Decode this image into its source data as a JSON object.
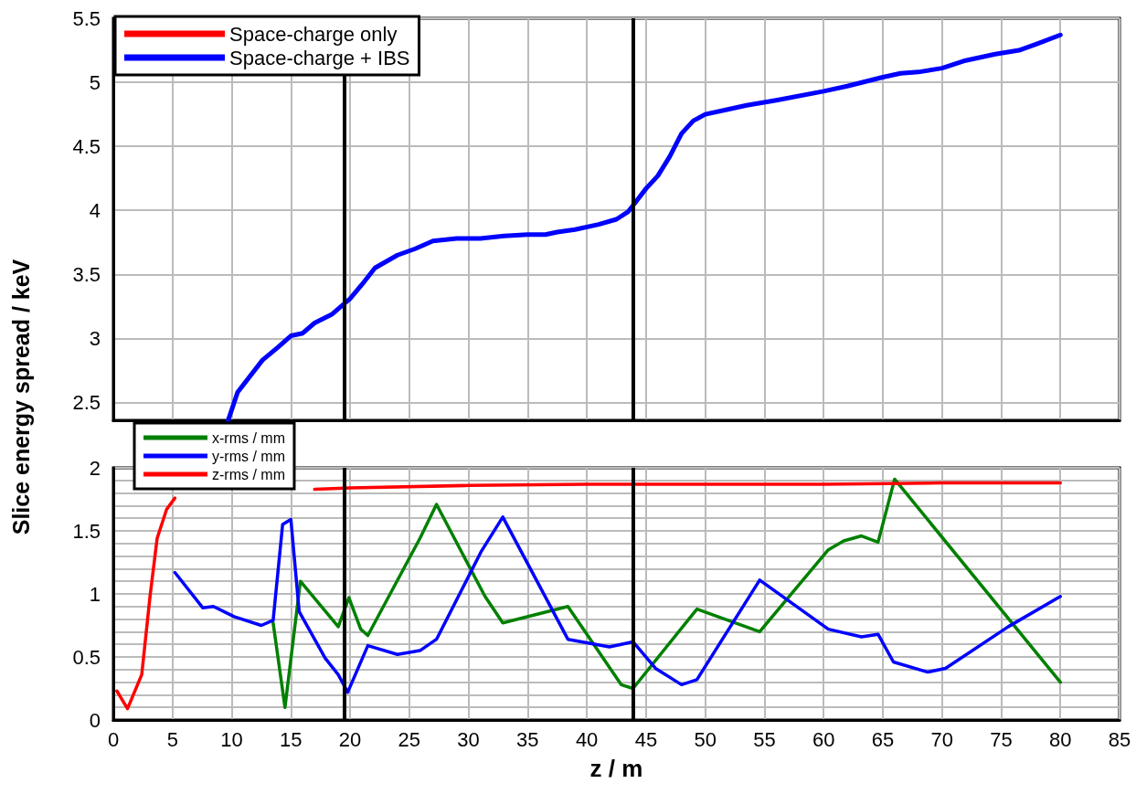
{
  "chart_data": [
    {
      "type": "line",
      "ylabel": "Slice energy spread / keV",
      "xlim": [
        0,
        85
      ],
      "xticks": [
        0,
        5,
        10,
        15,
        20,
        25,
        30,
        35,
        40,
        45,
        50,
        55,
        60,
        65,
        70,
        75,
        80,
        85
      ],
      "ylim": [
        2.36,
        5.5
      ],
      "yticks": [
        2.5,
        3,
        3.5,
        4,
        4.5,
        5,
        5.5
      ],
      "tick_labels": "y",
      "grid": true,
      "legend": "top left",
      "marker": "none",
      "line_style": "solid",
      "ref_lines": [
        {
          "axis": "x",
          "value": 19.5,
          "color": "#000000"
        },
        {
          "axis": "x",
          "value": 43.9,
          "color": "#000000"
        }
      ],
      "series": [
        {
          "name": "Space-charge only",
          "color": "#ff0000"
        },
        {
          "name": "Space-charge + IBS",
          "color": "#0000ff",
          "x": [
            9.7,
            10.5,
            12.6,
            13.9,
            15,
            16,
            17,
            18.5,
            20,
            21,
            22.1,
            24,
            25.5,
            27,
            29,
            31,
            33,
            35,
            36.5,
            37.5,
            39,
            41,
            42.5,
            43.5,
            44,
            45,
            46,
            47,
            48,
            49,
            50,
            52,
            53.5,
            56,
            60,
            62,
            65,
            66.5,
            68,
            70,
            72,
            74.5,
            76.5,
            78,
            80
          ],
          "values": [
            2.36,
            2.58,
            2.83,
            2.93,
            3.02,
            3.04,
            3.12,
            3.19,
            3.31,
            3.42,
            3.55,
            3.65,
            3.7,
            3.76,
            3.78,
            3.78,
            3.8,
            3.81,
            3.81,
            3.83,
            3.85,
            3.89,
            3.93,
            3.99,
            4.05,
            4.17,
            4.27,
            4.42,
            4.6,
            4.7,
            4.75,
            4.79,
            4.82,
            4.86,
            4.93,
            4.97,
            5.04,
            5.07,
            5.08,
            5.11,
            5.17,
            5.22,
            5.25,
            5.3,
            5.37
          ]
        }
      ]
    },
    {
      "type": "line",
      "xlabel": "z / m",
      "xlim": [
        0,
        85
      ],
      "xticks": [
        0,
        5,
        10,
        15,
        20,
        25,
        30,
        35,
        40,
        45,
        50,
        55,
        60,
        65,
        70,
        75,
        80,
        85
      ],
      "ylim": [
        0,
        2
      ],
      "yticks": [
        0,
        {
          "value": 0.1,
          "label": null
        },
        {
          "value": 0.2,
          "label": null
        },
        {
          "value": 0.3,
          "label": null
        },
        {
          "value": 0.4,
          "label": null
        },
        0.5,
        {
          "value": 0.6,
          "label": null
        },
        {
          "value": 0.7,
          "label": null
        },
        {
          "value": 0.8,
          "label": null
        },
        {
          "value": 0.9,
          "label": null
        },
        1,
        {
          "value": 1.1,
          "label": null
        },
        {
          "value": 1.2,
          "label": null
        },
        {
          "value": 1.3,
          "label": null
        },
        {
          "value": 1.4,
          "label": null
        },
        1.5,
        {
          "value": 1.6,
          "label": null
        },
        {
          "value": 1.7,
          "label": null
        },
        {
          "value": 1.8,
          "label": null
        },
        {
          "value": 1.9,
          "label": null
        },
        2
      ],
      "grid": true,
      "legend": "top left",
      "marker": "none",
      "line_style": "solid",
      "ref_lines": [
        {
          "axis": "x",
          "value": 19.5,
          "color": "#000000"
        },
        {
          "axis": "x",
          "value": 43.9,
          "color": "#000000"
        }
      ],
      "series": [
        {
          "name": "x-rms / mm",
          "color": "#008000",
          "x": [
            13.5,
            14.5,
            15.8,
            19,
            19.9,
            20.9,
            21.5,
            25.9,
            27.3,
            31.4,
            32.9,
            38.4,
            42.9,
            43.9,
            49.3,
            54.6,
            60.4,
            61.7,
            63.2,
            64.6,
            66,
            80
          ],
          "values": [
            0.77,
            0.1,
            1.1,
            0.74,
            0.97,
            0.72,
            0.67,
            1.44,
            1.71,
            0.98,
            0.77,
            0.9,
            0.28,
            0.25,
            0.88,
            0.7,
            1.35,
            1.42,
            1.46,
            1.41,
            1.91,
            0.3
          ]
        },
        {
          "name": "y-rms / mm",
          "color": "#0000ff",
          "x": [
            5.2,
            7.55,
            8.46,
            10.2,
            12.5,
            13.5,
            14.3,
            15,
            15.7,
            17.9,
            19,
            19.8,
            21.5,
            24,
            25.9,
            27.3,
            31.1,
            32.9,
            35,
            38.4,
            41.9,
            43.9,
            45.8,
            48,
            49.3,
            54.6,
            60.4,
            63.2,
            64.6,
            65.9,
            68.8,
            70.3,
            75.6,
            80
          ],
          "values": [
            1.17,
            0.89,
            0.9,
            0.82,
            0.75,
            0.79,
            1.55,
            1.59,
            0.86,
            0.49,
            0.36,
            0.22,
            0.59,
            0.52,
            0.55,
            0.64,
            1.34,
            1.61,
            1.24,
            0.64,
            0.58,
            0.62,
            0.41,
            0.28,
            0.32,
            1.11,
            0.72,
            0.66,
            0.68,
            0.46,
            0.38,
            0.41,
            0.74,
            0.98
          ]
        },
        {
          "name": "z-rms / mm",
          "color": "#ff0000",
          "x": [
            0.3,
            1.2,
            2.4,
            3.1,
            3.7,
            4.5,
            5.2,
            10,
            17,
            20,
            30,
            40,
            50,
            60,
            70,
            80
          ],
          "values": [
            0.23,
            0.09,
            0.36,
            0.98,
            1.44,
            1.67,
            1.76,
            null,
            1.83,
            1.84,
            1.86,
            1.87,
            1.87,
            1.87,
            1.88,
            1.88
          ]
        }
      ]
    }
  ]
}
